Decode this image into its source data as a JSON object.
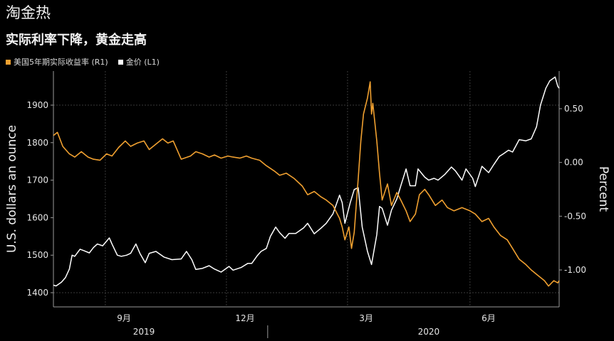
{
  "header": {
    "title": "淘金热",
    "subtitle": "实际利率下降，黄金走高"
  },
  "legend": [
    {
      "label": "美国5年期实际收益率 (R1)",
      "color": "#f0a030"
    },
    {
      "label": "金价 (L1)",
      "color": "#ffffff"
    }
  ],
  "chart_data": {
    "type": "line",
    "ylabel_left": "U.S. dollars an ounce",
    "ylabel_right": "Percent",
    "ylim_left": [
      1380,
      1980
    ],
    "ylim_right": [
      -1.35,
      0.9
    ],
    "left_ticks": [
      "1900",
      "1800",
      "1700",
      "1600",
      "1500",
      "1400"
    ],
    "right_ticks": [
      "0.50",
      "0.00",
      "-0.50",
      "-1.00"
    ],
    "x_month_ticks": [
      "9月",
      "12月",
      "3月",
      "6月"
    ],
    "x_year_ticks": [
      "2019",
      "2020"
    ],
    "grid": true,
    "x_range": [
      "2019-07-24",
      "2020-08-07"
    ],
    "series": [
      {
        "name": "金价 (L1)",
        "axis": "left",
        "color": "#ffffff",
        "points": [
          [
            "2019-07-24",
            1420
          ],
          [
            "2019-07-26",
            1418
          ],
          [
            "2019-07-30",
            1428
          ],
          [
            "2019-08-02",
            1440
          ],
          [
            "2019-08-05",
            1463
          ],
          [
            "2019-08-07",
            1500
          ],
          [
            "2019-08-09",
            1497
          ],
          [
            "2019-08-13",
            1516
          ],
          [
            "2019-08-16",
            1512
          ],
          [
            "2019-08-20",
            1506
          ],
          [
            "2019-08-23",
            1520
          ],
          [
            "2019-08-26",
            1530
          ],
          [
            "2019-08-30",
            1525
          ],
          [
            "2019-09-04",
            1546
          ],
          [
            "2019-09-06",
            1530
          ],
          [
            "2019-09-10",
            1500
          ],
          [
            "2019-09-13",
            1497
          ],
          [
            "2019-09-17",
            1500
          ],
          [
            "2019-09-20",
            1505
          ],
          [
            "2019-09-24",
            1530
          ],
          [
            "2019-09-27",
            1505
          ],
          [
            "2019-10-01",
            1480
          ],
          [
            "2019-10-04",
            1505
          ],
          [
            "2019-10-09",
            1510
          ],
          [
            "2019-10-15",
            1495
          ],
          [
            "2019-10-21",
            1488
          ],
          [
            "2019-10-28",
            1490
          ],
          [
            "2019-11-01",
            1510
          ],
          [
            "2019-11-05",
            1488
          ],
          [
            "2019-11-08",
            1462
          ],
          [
            "2019-11-13",
            1465
          ],
          [
            "2019-11-18",
            1472
          ],
          [
            "2019-11-22",
            1463
          ],
          [
            "2019-11-27",
            1455
          ],
          [
            "2019-12-03",
            1470
          ],
          [
            "2019-12-06",
            1460
          ],
          [
            "2019-12-12",
            1467
          ],
          [
            "2019-12-17",
            1478
          ],
          [
            "2019-12-20",
            1478
          ],
          [
            "2019-12-24",
            1498
          ],
          [
            "2019-12-27",
            1510
          ],
          [
            "2019-12-31",
            1518
          ],
          [
            "2020-01-03",
            1550
          ],
          [
            "2020-01-07",
            1575
          ],
          [
            "2020-01-10",
            1560
          ],
          [
            "2020-01-14",
            1545
          ],
          [
            "2020-01-17",
            1558
          ],
          [
            "2020-01-22",
            1558
          ],
          [
            "2020-01-28",
            1573
          ],
          [
            "2020-01-31",
            1585
          ],
          [
            "2020-02-05",
            1557
          ],
          [
            "2020-02-10",
            1572
          ],
          [
            "2020-02-14",
            1585
          ],
          [
            "2020-02-19",
            1610
          ],
          [
            "2020-02-24",
            1660
          ],
          [
            "2020-02-26",
            1640
          ],
          [
            "2020-02-28",
            1585
          ],
          [
            "2020-03-03",
            1640
          ],
          [
            "2020-03-06",
            1675
          ],
          [
            "2020-03-09",
            1680
          ],
          [
            "2020-03-12",
            1575
          ],
          [
            "2020-03-16",
            1510
          ],
          [
            "2020-03-19",
            1475
          ],
          [
            "2020-03-23",
            1555
          ],
          [
            "2020-03-25",
            1630
          ],
          [
            "2020-03-27",
            1625
          ],
          [
            "2020-03-31",
            1580
          ],
          [
            "2020-04-03",
            1620
          ],
          [
            "2020-04-07",
            1650
          ],
          [
            "2020-04-10",
            1685
          ],
          [
            "2020-04-14",
            1730
          ],
          [
            "2020-04-17",
            1685
          ],
          [
            "2020-04-21",
            1685
          ],
          [
            "2020-04-23",
            1730
          ],
          [
            "2020-04-28",
            1708
          ],
          [
            "2020-05-01",
            1700
          ],
          [
            "2020-05-05",
            1705
          ],
          [
            "2020-05-08",
            1700
          ],
          [
            "2020-05-13",
            1715
          ],
          [
            "2020-05-18",
            1735
          ],
          [
            "2020-05-21",
            1725
          ],
          [
            "2020-05-26",
            1700
          ],
          [
            "2020-05-29",
            1730
          ],
          [
            "2020-06-03",
            1705
          ],
          [
            "2020-06-05",
            1683
          ],
          [
            "2020-06-10",
            1737
          ],
          [
            "2020-06-15",
            1720
          ],
          [
            "2020-06-19",
            1742
          ],
          [
            "2020-06-23",
            1763
          ],
          [
            "2020-06-26",
            1770
          ],
          [
            "2020-06-30",
            1780
          ],
          [
            "2020-07-03",
            1775
          ],
          [
            "2020-07-08",
            1808
          ],
          [
            "2020-07-13",
            1805
          ],
          [
            "2020-07-17",
            1810
          ],
          [
            "2020-07-21",
            1842
          ],
          [
            "2020-07-24",
            1900
          ],
          [
            "2020-07-28",
            1945
          ],
          [
            "2020-07-31",
            1965
          ],
          [
            "2020-08-04",
            1975
          ],
          [
            "2020-08-06",
            1950
          ],
          [
            "2020-08-07",
            1945
          ]
        ]
      },
      {
        "name": "美国5年期实际收益率 (R1)",
        "axis": "right",
        "color": "#f0a030",
        "points": [
          [
            "2019-07-24",
            0.25
          ],
          [
            "2019-07-27",
            0.28
          ],
          [
            "2019-07-31",
            0.15
          ],
          [
            "2019-08-05",
            0.08
          ],
          [
            "2019-08-09",
            0.05
          ],
          [
            "2019-08-14",
            0.1
          ],
          [
            "2019-08-19",
            0.05
          ],
          [
            "2019-08-23",
            0.03
          ],
          [
            "2019-08-28",
            0.02
          ],
          [
            "2019-09-02",
            0.08
          ],
          [
            "2019-09-06",
            0.06
          ],
          [
            "2019-09-11",
            0.14
          ],
          [
            "2019-09-16",
            0.2
          ],
          [
            "2019-09-20",
            0.15
          ],
          [
            "2019-09-25",
            0.18
          ],
          [
            "2019-09-30",
            0.2
          ],
          [
            "2019-10-04",
            0.12
          ],
          [
            "2019-10-09",
            0.17
          ],
          [
            "2019-10-14",
            0.22
          ],
          [
            "2019-10-18",
            0.18
          ],
          [
            "2019-10-22",
            0.2
          ],
          [
            "2019-10-28",
            0.03
          ],
          [
            "2019-11-04",
            0.06
          ],
          [
            "2019-11-08",
            0.1
          ],
          [
            "2019-11-13",
            0.08
          ],
          [
            "2019-11-18",
            0.05
          ],
          [
            "2019-11-22",
            0.07
          ],
          [
            "2019-11-27",
            0.04
          ],
          [
            "2019-12-02",
            0.06
          ],
          [
            "2019-12-06",
            0.05
          ],
          [
            "2019-12-11",
            0.04
          ],
          [
            "2019-12-16",
            0.06
          ],
          [
            "2019-12-20",
            0.04
          ],
          [
            "2019-12-26",
            0.02
          ],
          [
            "2019-12-31",
            -0.03
          ],
          [
            "2020-01-06",
            -0.08
          ],
          [
            "2020-01-10",
            -0.12
          ],
          [
            "2020-01-15",
            -0.1
          ],
          [
            "2020-01-21",
            -0.15
          ],
          [
            "2020-01-27",
            -0.22
          ],
          [
            "2020-01-31",
            -0.3
          ],
          [
            "2020-02-05",
            -0.27
          ],
          [
            "2020-02-10",
            -0.32
          ],
          [
            "2020-02-14",
            -0.35
          ],
          [
            "2020-02-19",
            -0.4
          ],
          [
            "2020-02-24",
            -0.52
          ],
          [
            "2020-02-26",
            -0.6
          ],
          [
            "2020-02-28",
            -0.72
          ],
          [
            "2020-03-02",
            -0.6
          ],
          [
            "2020-03-04",
            -0.8
          ],
          [
            "2020-03-06",
            -0.65
          ],
          [
            "2020-03-09",
            -0.15
          ],
          [
            "2020-03-11",
            0.2
          ],
          [
            "2020-03-13",
            0.45
          ],
          [
            "2020-03-16",
            0.6
          ],
          [
            "2020-03-18",
            0.75
          ],
          [
            "2020-03-19",
            0.45
          ],
          [
            "2020-03-20",
            0.55
          ],
          [
            "2020-03-23",
            0.2
          ],
          [
            "2020-03-25",
            -0.1
          ],
          [
            "2020-03-27",
            -0.35
          ],
          [
            "2020-03-31",
            -0.2
          ],
          [
            "2020-04-03",
            -0.4
          ],
          [
            "2020-04-07",
            -0.28
          ],
          [
            "2020-04-10",
            -0.35
          ],
          [
            "2020-04-14",
            -0.45
          ],
          [
            "2020-04-17",
            -0.55
          ],
          [
            "2020-04-21",
            -0.48
          ],
          [
            "2020-04-24",
            -0.3
          ],
          [
            "2020-04-28",
            -0.25
          ],
          [
            "2020-05-01",
            -0.3
          ],
          [
            "2020-05-06",
            -0.4
          ],
          [
            "2020-05-11",
            -0.35
          ],
          [
            "2020-05-15",
            -0.42
          ],
          [
            "2020-05-20",
            -0.45
          ],
          [
            "2020-05-26",
            -0.42
          ],
          [
            "2020-06-01",
            -0.45
          ],
          [
            "2020-06-05",
            -0.48
          ],
          [
            "2020-06-10",
            -0.55
          ],
          [
            "2020-06-15",
            -0.52
          ],
          [
            "2020-06-19",
            -0.6
          ],
          [
            "2020-06-24",
            -0.68
          ],
          [
            "2020-06-29",
            -0.72
          ],
          [
            "2020-07-03",
            -0.8
          ],
          [
            "2020-07-08",
            -0.9
          ],
          [
            "2020-07-13",
            -0.95
          ],
          [
            "2020-07-17",
            -1.0
          ],
          [
            "2020-07-22",
            -1.05
          ],
          [
            "2020-07-27",
            -1.1
          ],
          [
            "2020-07-30",
            -1.15
          ],
          [
            "2020-08-03",
            -1.1
          ],
          [
            "2020-08-06",
            -1.12
          ],
          [
            "2020-08-07",
            -1.1
          ]
        ]
      }
    ]
  }
}
